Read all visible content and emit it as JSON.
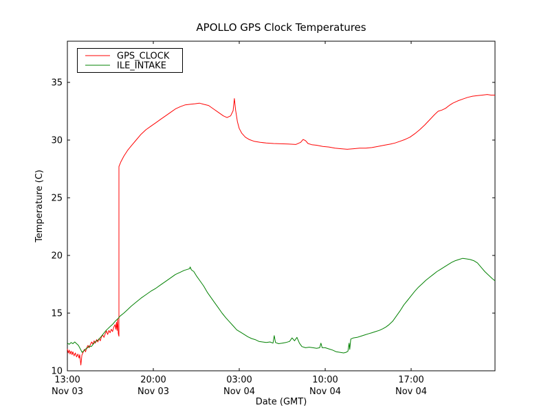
{
  "chart_data": {
    "type": "line",
    "title": "APOLLO GPS Clock Temperatures",
    "xlabel": "Date (GMT)",
    "ylabel": "Temperature (C)",
    "x_unit": "hours_since_Nov03_13:00_GMT",
    "xlim": [
      0,
      34.83
    ],
    "ylim": [
      10,
      38.57
    ],
    "grid": false,
    "legend_position": "upper left",
    "x_ticks": [
      {
        "pos": 0,
        "time": "13:00",
        "date": "Nov 03"
      },
      {
        "pos": 7,
        "time": "20:00",
        "date": "Nov 03"
      },
      {
        "pos": 14,
        "time": "03:00",
        "date": "Nov 04"
      },
      {
        "pos": 21,
        "time": "10:00",
        "date": "Nov 04"
      },
      {
        "pos": 28,
        "time": "17:00",
        "date": "Nov 04"
      }
    ],
    "y_ticks": [
      10,
      15,
      20,
      25,
      30,
      35
    ],
    "series": [
      {
        "name": "GPS_CLOCK",
        "color": "#ff0000",
        "points": [
          [
            0,
            11.9
          ],
          [
            0.08,
            11.55
          ],
          [
            0.15,
            11.8
          ],
          [
            0.22,
            11.45
          ],
          [
            0.3,
            11.7
          ],
          [
            0.38,
            11.4
          ],
          [
            0.45,
            11.65
          ],
          [
            0.55,
            11.3
          ],
          [
            0.65,
            11.55
          ],
          [
            0.75,
            11.2
          ],
          [
            0.85,
            11.45
          ],
          [
            0.95,
            11.1
          ],
          [
            1.0,
            11.4
          ],
          [
            1.05,
            10.95
          ],
          [
            1.1,
            10.5
          ],
          [
            1.18,
            11.35
          ],
          [
            1.28,
            11.6
          ],
          [
            1.38,
            11.85
          ],
          [
            1.48,
            11.65
          ],
          [
            1.58,
            12.0
          ],
          [
            1.68,
            12.2
          ],
          [
            1.78,
            12.0
          ],
          [
            1.88,
            12.3
          ],
          [
            1.98,
            12.5
          ],
          [
            2.08,
            12.3
          ],
          [
            2.18,
            12.6
          ],
          [
            2.28,
            12.4
          ],
          [
            2.38,
            12.7
          ],
          [
            2.48,
            12.5
          ],
          [
            2.58,
            12.8
          ],
          [
            2.68,
            12.6
          ],
          [
            2.78,
            12.95
          ],
          [
            2.88,
            13.1
          ],
          [
            2.98,
            12.9
          ],
          [
            3.08,
            13.2
          ],
          [
            3.18,
            13.45
          ],
          [
            3.28,
            13.15
          ],
          [
            3.38,
            13.5
          ],
          [
            3.48,
            13.3
          ],
          [
            3.58,
            13.6
          ],
          [
            3.68,
            13.4
          ],
          [
            3.78,
            13.8
          ],
          [
            3.88,
            14.0
          ],
          [
            3.95,
            13.6
          ],
          [
            4.0,
            14.2
          ],
          [
            4.05,
            13.5
          ],
          [
            4.1,
            14.45
          ],
          [
            4.15,
            13.2
          ],
          [
            4.2,
            13.0
          ],
          [
            4.2,
            27.7
          ],
          [
            4.35,
            28.1
          ],
          [
            4.6,
            28.6
          ],
          [
            4.9,
            29.1
          ],
          [
            5.2,
            29.5
          ],
          [
            5.6,
            30.0
          ],
          [
            6.0,
            30.5
          ],
          [
            6.4,
            30.9
          ],
          [
            6.8,
            31.2
          ],
          [
            7.2,
            31.5
          ],
          [
            7.6,
            31.8
          ],
          [
            8.0,
            32.1
          ],
          [
            8.4,
            32.4
          ],
          [
            8.8,
            32.7
          ],
          [
            9.2,
            32.9
          ],
          [
            9.6,
            33.05
          ],
          [
            10.0,
            33.1
          ],
          [
            10.4,
            33.15
          ],
          [
            10.75,
            33.2
          ],
          [
            11.1,
            33.1
          ],
          [
            11.5,
            33.0
          ],
          [
            11.9,
            32.7
          ],
          [
            12.3,
            32.4
          ],
          [
            12.7,
            32.1
          ],
          [
            13.0,
            31.95
          ],
          [
            13.3,
            32.1
          ],
          [
            13.5,
            32.55
          ],
          [
            13.6,
            33.6
          ],
          [
            13.7,
            32.6
          ],
          [
            13.85,
            31.6
          ],
          [
            14.0,
            31.0
          ],
          [
            14.2,
            30.6
          ],
          [
            14.5,
            30.25
          ],
          [
            14.8,
            30.05
          ],
          [
            15.2,
            29.9
          ],
          [
            15.7,
            29.8
          ],
          [
            16.2,
            29.75
          ],
          [
            16.8,
            29.7
          ],
          [
            17.4,
            29.68
          ],
          [
            18.0,
            29.66
          ],
          [
            18.6,
            29.62
          ],
          [
            19.0,
            29.8
          ],
          [
            19.2,
            30.05
          ],
          [
            19.4,
            29.95
          ],
          [
            19.6,
            29.7
          ],
          [
            19.9,
            29.6
          ],
          [
            20.3,
            29.55
          ],
          [
            20.8,
            29.45
          ],
          [
            21.3,
            29.4
          ],
          [
            21.8,
            29.3
          ],
          [
            22.3,
            29.25
          ],
          [
            22.8,
            29.2
          ],
          [
            23.3,
            29.25
          ],
          [
            23.8,
            29.3
          ],
          [
            24.3,
            29.3
          ],
          [
            24.8,
            29.35
          ],
          [
            25.3,
            29.45
          ],
          [
            25.8,
            29.55
          ],
          [
            26.3,
            29.65
          ],
          [
            26.7,
            29.75
          ],
          [
            27.1,
            29.9
          ],
          [
            27.5,
            30.05
          ],
          [
            27.9,
            30.25
          ],
          [
            28.3,
            30.55
          ],
          [
            28.7,
            30.9
          ],
          [
            29.1,
            31.3
          ],
          [
            29.5,
            31.75
          ],
          [
            29.9,
            32.2
          ],
          [
            30.2,
            32.5
          ],
          [
            30.5,
            32.6
          ],
          [
            30.8,
            32.75
          ],
          [
            31.1,
            33.0
          ],
          [
            31.4,
            33.2
          ],
          [
            31.8,
            33.4
          ],
          [
            32.2,
            33.55
          ],
          [
            32.6,
            33.7
          ],
          [
            33.0,
            33.8
          ],
          [
            33.4,
            33.85
          ],
          [
            33.8,
            33.9
          ],
          [
            34.2,
            33.95
          ],
          [
            34.5,
            33.9
          ],
          [
            34.83,
            33.9
          ]
        ]
      },
      {
        "name": "ILE_INTAKE",
        "color": "#008000",
        "points": [
          [
            0,
            12.4
          ],
          [
            0.15,
            12.3
          ],
          [
            0.3,
            12.45
          ],
          [
            0.45,
            12.35
          ],
          [
            0.6,
            12.5
          ],
          [
            0.75,
            12.35
          ],
          [
            0.9,
            12.2
          ],
          [
            1.05,
            11.9
          ],
          [
            1.2,
            11.6
          ],
          [
            1.35,
            11.75
          ],
          [
            1.5,
            11.9
          ],
          [
            1.65,
            12.0
          ],
          [
            1.8,
            12.15
          ],
          [
            1.95,
            12.1
          ],
          [
            2.1,
            12.3
          ],
          [
            2.25,
            12.5
          ],
          [
            2.4,
            12.6
          ],
          [
            2.55,
            12.7
          ],
          [
            2.7,
            12.9
          ],
          [
            2.85,
            13.1
          ],
          [
            3.0,
            13.3
          ],
          [
            3.15,
            13.5
          ],
          [
            3.3,
            13.65
          ],
          [
            3.5,
            13.85
          ],
          [
            3.7,
            14.05
          ],
          [
            3.9,
            14.3
          ],
          [
            4.1,
            14.5
          ],
          [
            4.3,
            14.75
          ],
          [
            4.6,
            15.0
          ],
          [
            4.9,
            15.3
          ],
          [
            5.2,
            15.6
          ],
          [
            5.6,
            15.95
          ],
          [
            6.0,
            16.3
          ],
          [
            6.4,
            16.6
          ],
          [
            6.8,
            16.9
          ],
          [
            7.2,
            17.15
          ],
          [
            7.6,
            17.45
          ],
          [
            8.0,
            17.75
          ],
          [
            8.4,
            18.05
          ],
          [
            8.8,
            18.35
          ],
          [
            9.2,
            18.55
          ],
          [
            9.5,
            18.7
          ],
          [
            9.8,
            18.8
          ],
          [
            9.95,
            18.85
          ],
          [
            10.0,
            19.0
          ],
          [
            10.1,
            18.75
          ],
          [
            10.3,
            18.6
          ],
          [
            10.5,
            18.25
          ],
          [
            10.8,
            17.8
          ],
          [
            11.1,
            17.35
          ],
          [
            11.4,
            16.8
          ],
          [
            11.7,
            16.35
          ],
          [
            12.0,
            15.9
          ],
          [
            12.3,
            15.45
          ],
          [
            12.6,
            15.0
          ],
          [
            12.9,
            14.6
          ],
          [
            13.2,
            14.25
          ],
          [
            13.5,
            13.9
          ],
          [
            13.8,
            13.55
          ],
          [
            14.1,
            13.35
          ],
          [
            14.4,
            13.15
          ],
          [
            14.7,
            12.95
          ],
          [
            15.0,
            12.8
          ],
          [
            15.3,
            12.7
          ],
          [
            15.6,
            12.55
          ],
          [
            15.9,
            12.5
          ],
          [
            16.2,
            12.45
          ],
          [
            16.5,
            12.5
          ],
          [
            16.75,
            12.4
          ],
          [
            16.85,
            13.05
          ],
          [
            16.95,
            12.45
          ],
          [
            17.2,
            12.35
          ],
          [
            17.5,
            12.4
          ],
          [
            17.8,
            12.45
          ],
          [
            18.1,
            12.55
          ],
          [
            18.3,
            12.85
          ],
          [
            18.5,
            12.6
          ],
          [
            18.7,
            12.9
          ],
          [
            18.9,
            12.4
          ],
          [
            19.1,
            12.1
          ],
          [
            19.4,
            12.0
          ],
          [
            19.7,
            12.05
          ],
          [
            20.0,
            12.0
          ],
          [
            20.3,
            11.95
          ],
          [
            20.55,
            12.0
          ],
          [
            20.65,
            12.4
          ],
          [
            20.75,
            12.0
          ],
          [
            21.0,
            12.0
          ],
          [
            21.3,
            11.9
          ],
          [
            21.6,
            11.8
          ],
          [
            21.9,
            11.65
          ],
          [
            22.2,
            11.6
          ],
          [
            22.5,
            11.55
          ],
          [
            22.7,
            11.6
          ],
          [
            22.85,
            11.7
          ],
          [
            22.95,
            12.4
          ],
          [
            23.0,
            11.85
          ],
          [
            23.08,
            12.75
          ],
          [
            23.3,
            12.85
          ],
          [
            23.6,
            12.9
          ],
          [
            23.9,
            13.0
          ],
          [
            24.2,
            13.1
          ],
          [
            24.5,
            13.2
          ],
          [
            24.8,
            13.3
          ],
          [
            25.1,
            13.4
          ],
          [
            25.4,
            13.5
          ],
          [
            25.7,
            13.65
          ],
          [
            25.95,
            13.8
          ],
          [
            26.2,
            14.0
          ],
          [
            26.5,
            14.3
          ],
          [
            26.8,
            14.75
          ],
          [
            27.1,
            15.2
          ],
          [
            27.4,
            15.7
          ],
          [
            27.7,
            16.1
          ],
          [
            28.0,
            16.5
          ],
          [
            28.3,
            16.9
          ],
          [
            28.6,
            17.25
          ],
          [
            28.9,
            17.55
          ],
          [
            29.2,
            17.85
          ],
          [
            29.5,
            18.1
          ],
          [
            29.8,
            18.35
          ],
          [
            30.1,
            18.6
          ],
          [
            30.4,
            18.8
          ],
          [
            30.7,
            19.0
          ],
          [
            31.0,
            19.2
          ],
          [
            31.3,
            19.4
          ],
          [
            31.6,
            19.55
          ],
          [
            31.9,
            19.65
          ],
          [
            32.2,
            19.75
          ],
          [
            32.5,
            19.7
          ],
          [
            32.8,
            19.65
          ],
          [
            33.1,
            19.55
          ],
          [
            33.4,
            19.35
          ],
          [
            33.6,
            19.1
          ],
          [
            33.8,
            18.85
          ],
          [
            34.0,
            18.6
          ],
          [
            34.2,
            18.4
          ],
          [
            34.4,
            18.2
          ],
          [
            34.6,
            18.0
          ],
          [
            34.83,
            17.8
          ]
        ]
      }
    ]
  },
  "legend": {
    "items": [
      {
        "label": "GPS_CLOCK"
      },
      {
        "label": "ILE_INTAKE"
      }
    ]
  }
}
